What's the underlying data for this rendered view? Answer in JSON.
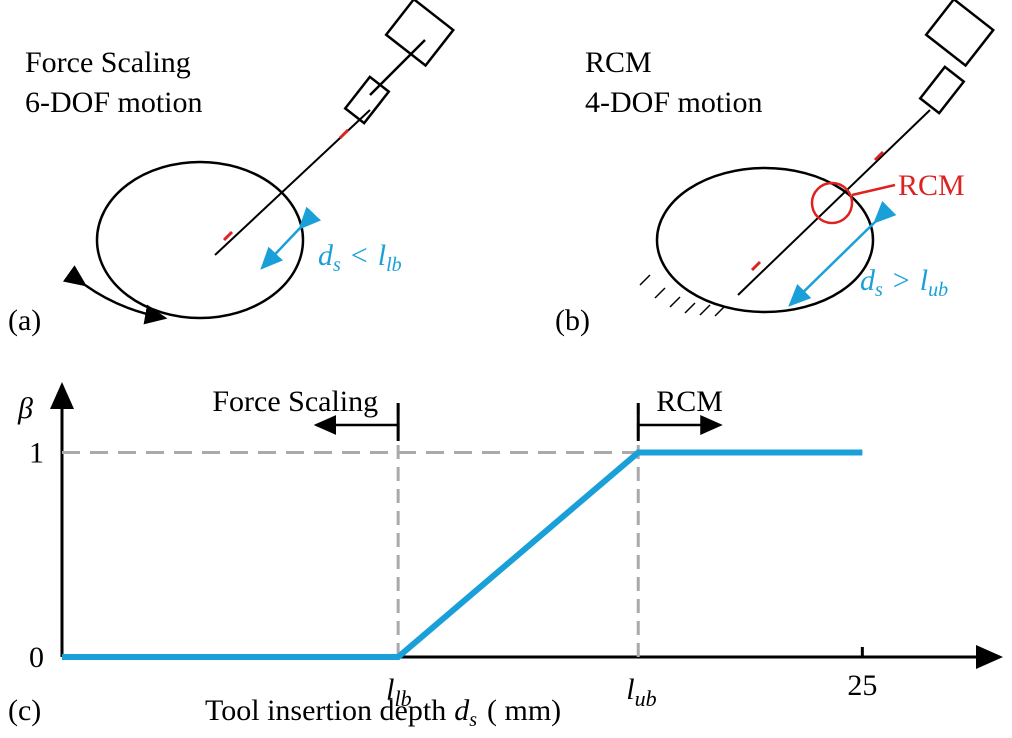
{
  "panels": [
    {
      "label": "(a)",
      "title": "Force Scaling",
      "subtitle": "6-DOF motion",
      "annotation": [
        "d",
        "s",
        "<",
        "l",
        "lb"
      ]
    },
    {
      "label": "(b)",
      "title": "RCM",
      "subtitle": "4-DOF motion",
      "annotation": [
        "d",
        "s",
        ">",
        "l",
        "ub"
      ],
      "marker": "RCM"
    }
  ],
  "chart_data": {
    "type": "line",
    "label": "(c)",
    "ylabel": "β",
    "xlabel": [
      "Tool insertion depth",
      "d",
      "s",
      "( mm)"
    ],
    "x": [
      0,
      10.5,
      18,
      25
    ],
    "values": [
      0,
      0,
      1,
      1
    ],
    "color": "#1aa0d8",
    "xlim": [
      0,
      29.3
    ],
    "ylim": [
      0,
      1.33
    ],
    "xticks": [
      {
        "value": 10.5,
        "label": "l",
        "label_sub": "lb"
      },
      {
        "value": 18,
        "label": "l",
        "label_sub": "ub"
      },
      25
    ],
    "yticks": [
      0,
      1
    ],
    "annotations": [
      {
        "text": "Force Scaling",
        "x": 10.5,
        "direction": "left"
      },
      {
        "text": "RCM",
        "x": 18,
        "direction": "right"
      }
    ]
  }
}
